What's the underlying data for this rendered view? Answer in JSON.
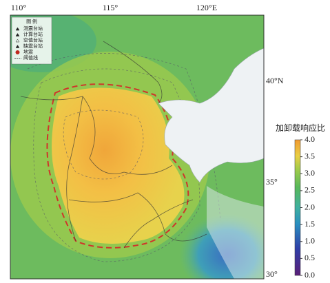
{
  "longitude_labels": [
    "110°",
    "115°",
    "120°E"
  ],
  "latitude_labels": [
    "40°N",
    "35°",
    "30°"
  ],
  "legend": {
    "title": "图 例",
    "items": [
      "测震台站",
      "计算台站",
      "空值台站",
      "缺震台站",
      "地震",
      "阈值线"
    ]
  },
  "colorbar": {
    "title": "加卸载响应比",
    "clim": [
      0,
      4
    ],
    "ticks": [
      {
        "value": 4,
        "label": "4.0"
      },
      {
        "value": 3.5,
        "label": "3.5"
      },
      {
        "value": 3,
        "label": "3.0"
      },
      {
        "value": 2.5,
        "label": "2.5"
      },
      {
        "value": 2,
        "label": "2.0"
      },
      {
        "value": 1.5,
        "label": "1.5"
      },
      {
        "value": 1,
        "label": "1.0"
      },
      {
        "value": 0.5,
        "label": "0.5"
      },
      {
        "value": 0,
        "label": "0.0"
      }
    ]
  }
}
